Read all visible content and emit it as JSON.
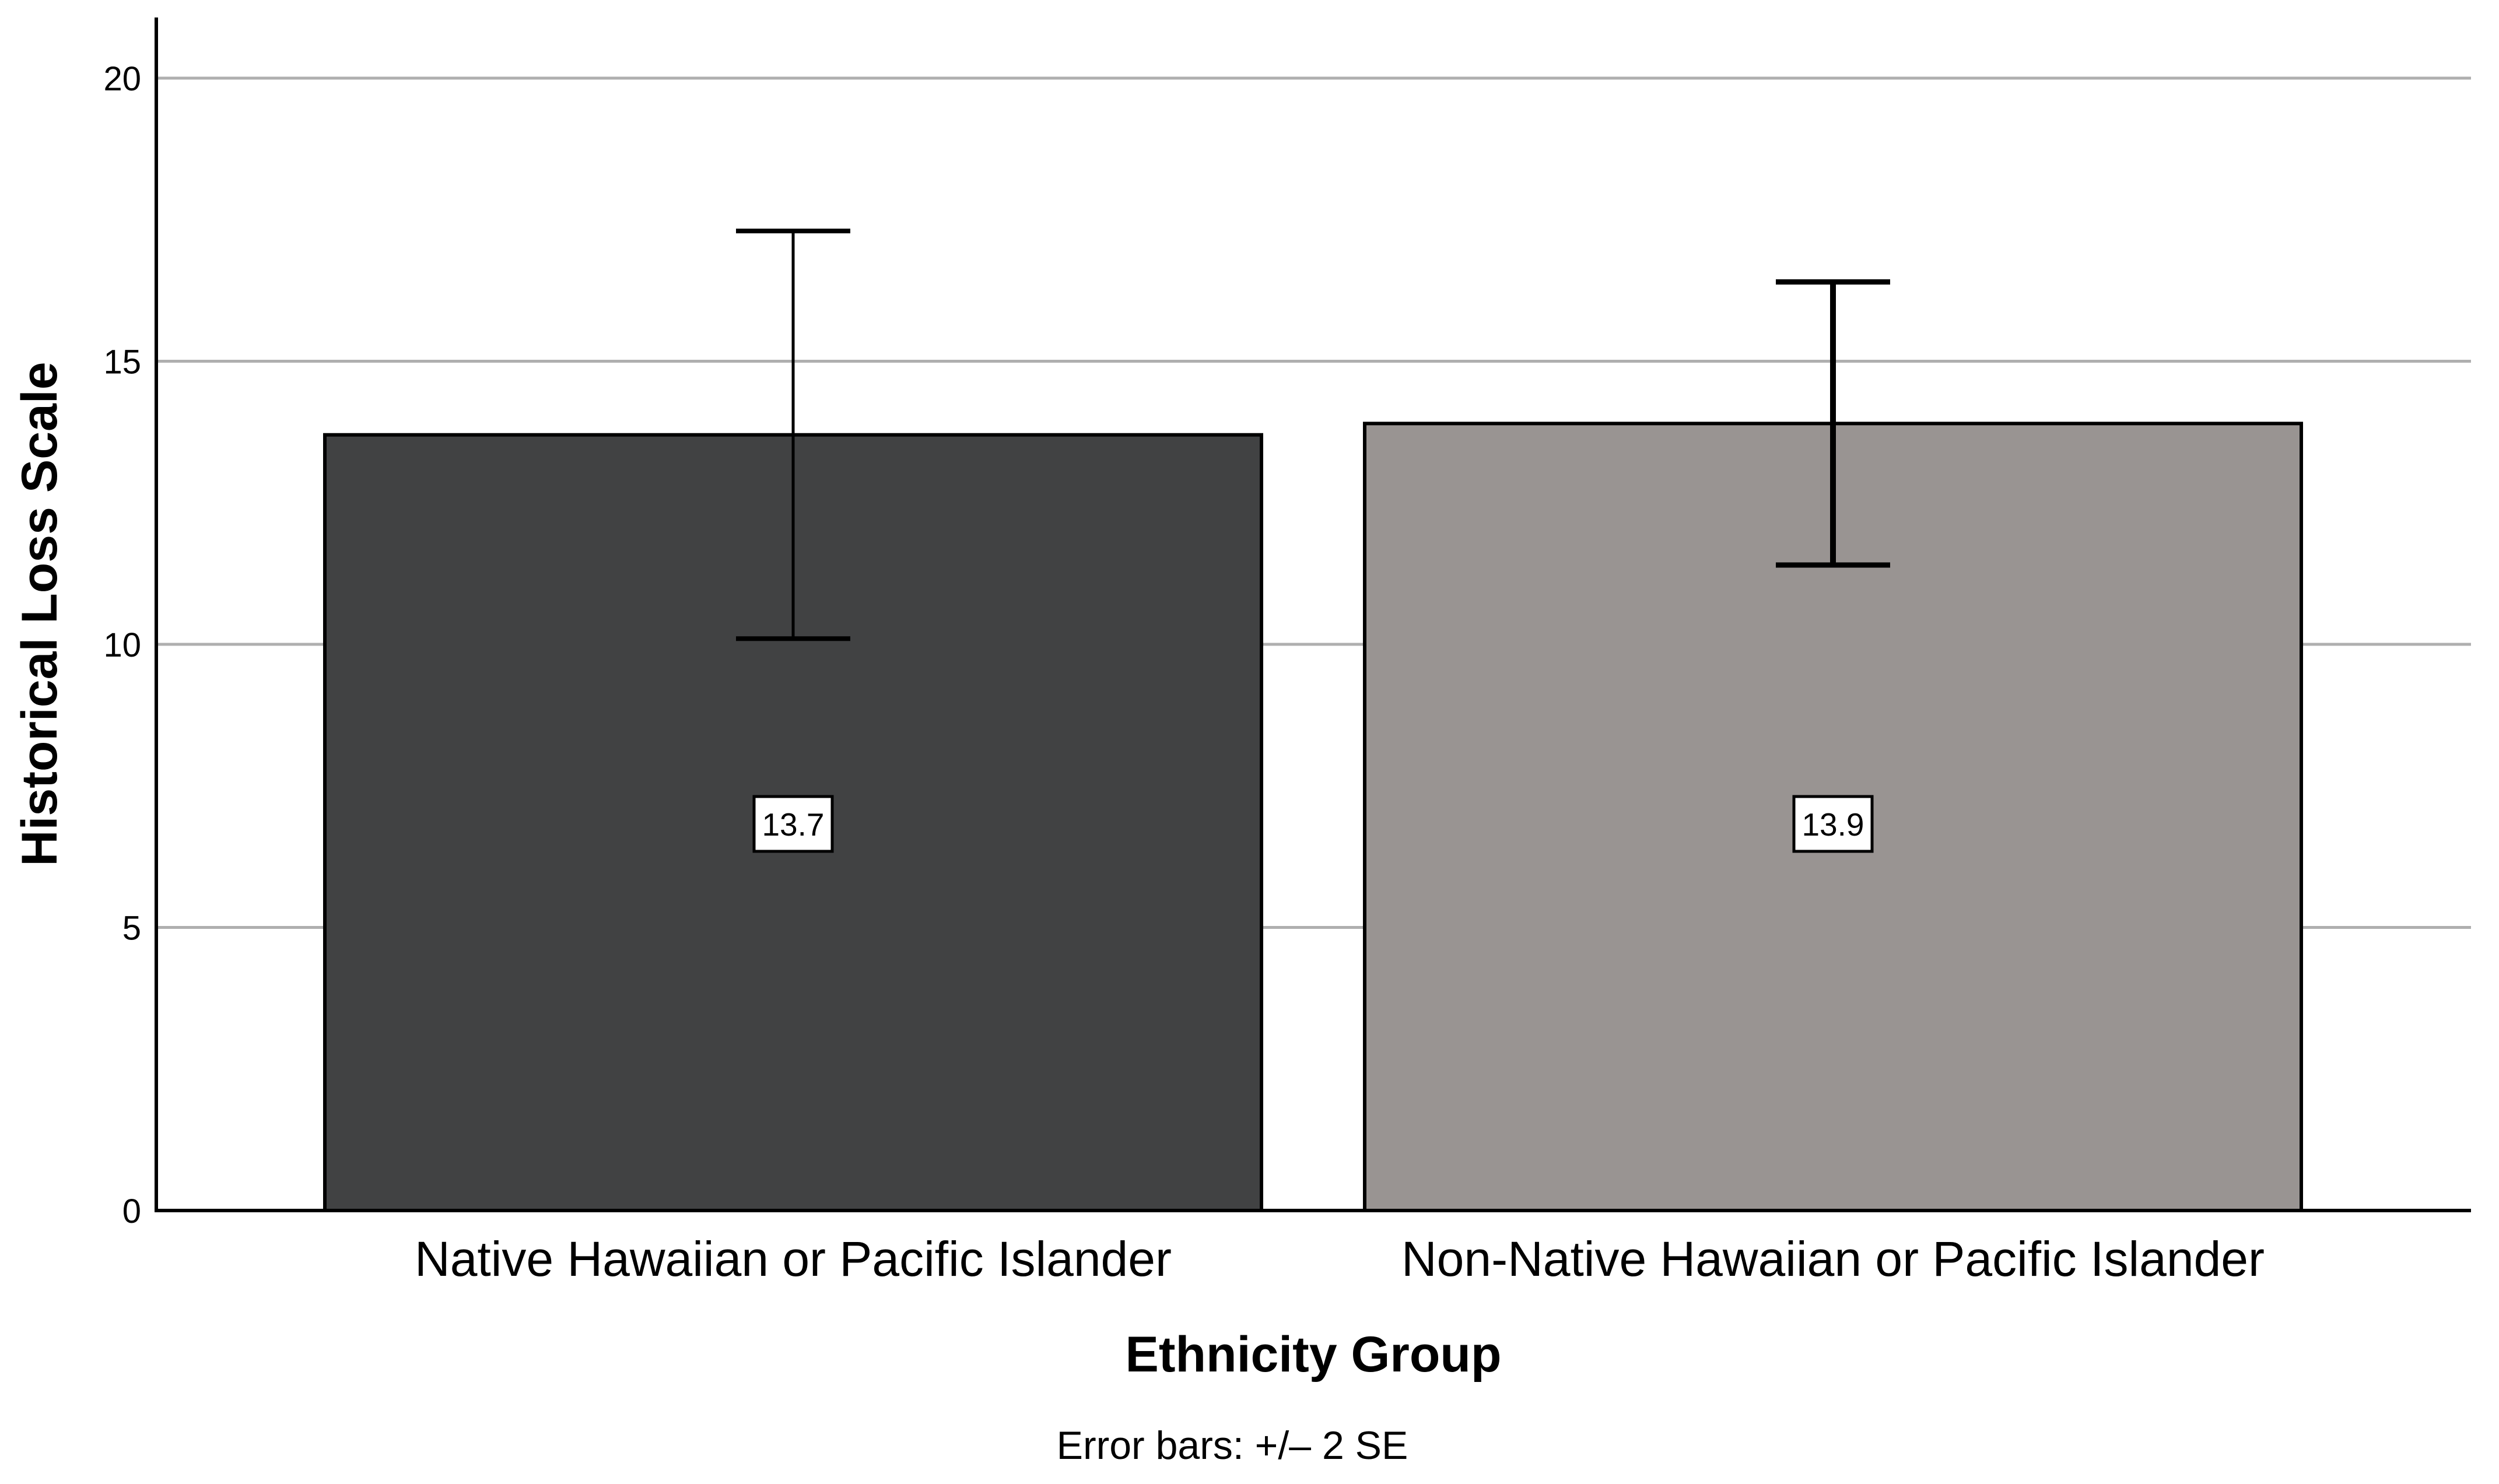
{
  "chart_data": {
    "type": "bar",
    "title": "",
    "categories": [
      "Native Hawaiian or Pacific Islander",
      "Non-Native Hawaiian or Pacific Islander"
    ],
    "values": [
      13.7,
      13.9
    ],
    "bar_labels": [
      "13.7",
      "13.9"
    ],
    "bar_colors": [
      "#414243",
      "#999492"
    ],
    "bar_border_color": "#000000",
    "error_bars": {
      "description": "+/- 2 SE",
      "upper": [
        17.3,
        16.4
      ],
      "lower": [
        10.1,
        11.4
      ],
      "color": "#000000"
    },
    "xlabel": "Ethnicity Group",
    "ylabel": "Historical Loss Scale",
    "yticks": [
      0,
      5,
      10,
      15,
      20
    ],
    "ylim": [
      0,
      21.1
    ],
    "grid": true,
    "grid_color": "#AFAFAF",
    "axis_color": "#000000",
    "legend_position": "none",
    "footnote": "Error bars: +/– 2 SE"
  }
}
